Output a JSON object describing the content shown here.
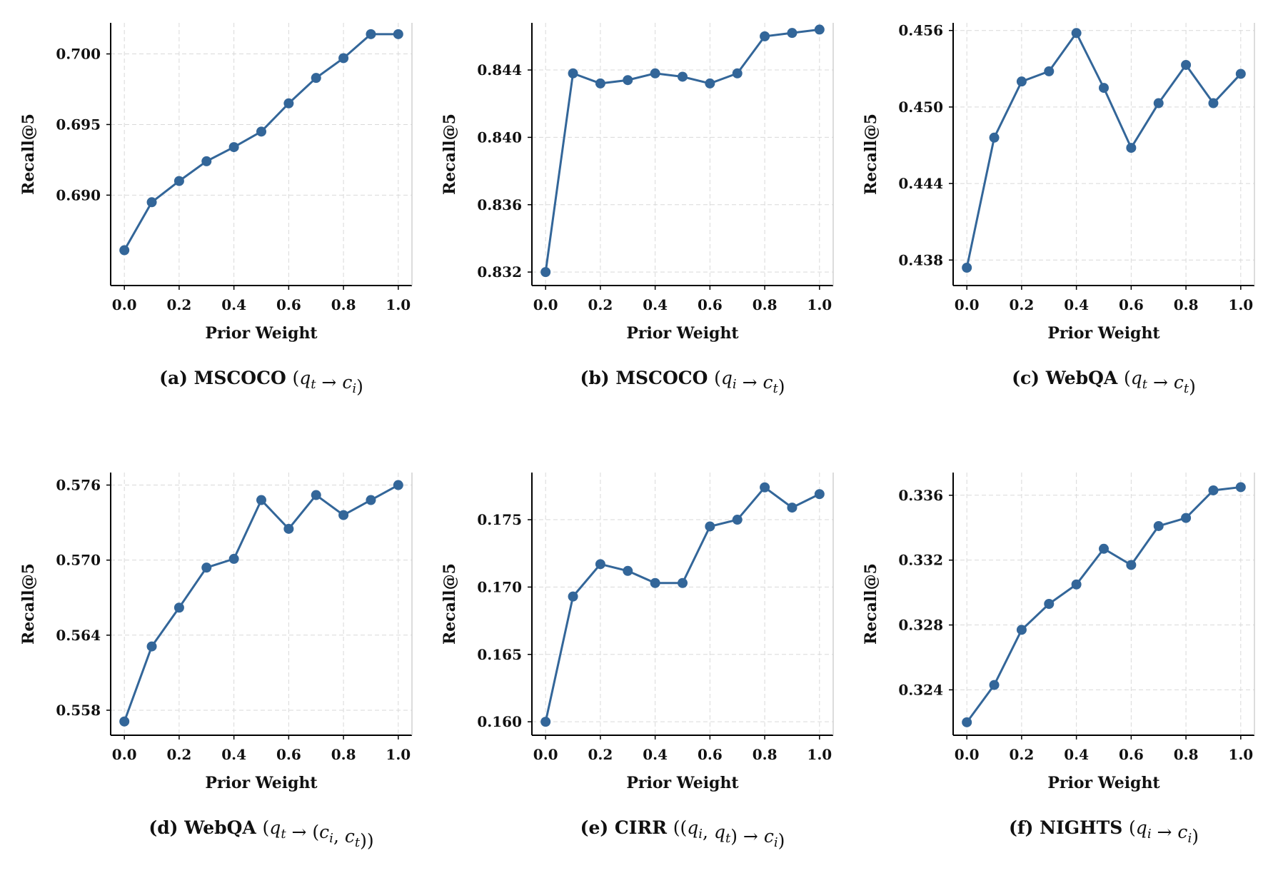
{
  "style": {
    "line_color": "#336699",
    "grid_color": "#d9d9d9"
  },
  "chart_data": [
    {
      "type": "line",
      "caption": {
        "prefix": "(a) MSCOCO ",
        "expr": "(q_t → c_i)"
      },
      "xlabel": "Prior Weight",
      "ylabel": "Recall@5",
      "x": [
        0.0,
        0.1,
        0.2,
        0.3,
        0.4,
        0.5,
        0.6,
        0.7,
        0.8,
        0.9,
        1.0
      ],
      "xticks": [
        "0.0",
        "0.2",
        "0.4",
        "0.6",
        "0.8",
        "1.0"
      ],
      "xlim": [
        -0.05,
        1.05
      ],
      "ylim": [
        0.6836,
        0.7022
      ],
      "yticks": [
        "0.690",
        "0.695",
        "0.700"
      ],
      "series": [
        {
          "values": [
            0.6861,
            0.6895,
            0.691,
            0.6924,
            0.6934,
            0.6945,
            0.6965,
            0.6983,
            0.6997,
            0.7014,
            0.7014
          ]
        }
      ],
      "grid": true
    },
    {
      "type": "line",
      "caption": {
        "prefix": "(b) MSCOCO ",
        "expr": "(q_i → c_t)"
      },
      "xlabel": "Prior Weight",
      "ylabel": "Recall@5",
      "x": [
        0.0,
        0.1,
        0.2,
        0.3,
        0.4,
        0.5,
        0.6,
        0.7,
        0.8,
        0.9,
        1.0
      ],
      "xticks": [
        "0.0",
        "0.2",
        "0.4",
        "0.6",
        "0.8",
        "1.0"
      ],
      "xlim": [
        -0.05,
        1.05
      ],
      "ylim": [
        0.8312,
        0.8468
      ],
      "yticks": [
        "0.832",
        "0.836",
        "0.840",
        "0.844"
      ],
      "series": [
        {
          "values": [
            0.832,
            0.8438,
            0.8432,
            0.8434,
            0.8438,
            0.8436,
            0.8432,
            0.8438,
            0.846,
            0.8462,
            0.8464
          ]
        }
      ],
      "grid": true
    },
    {
      "type": "line",
      "caption": {
        "prefix": "(c) WebQA ",
        "expr": "(q_t → c_t)"
      },
      "xlabel": "Prior Weight",
      "ylabel": "Recall@5",
      "x": [
        0.0,
        0.1,
        0.2,
        0.3,
        0.4,
        0.5,
        0.6,
        0.7,
        0.8,
        0.9,
        1.0
      ],
      "xticks": [
        "0.0",
        "0.2",
        "0.4",
        "0.6",
        "0.8",
        "1.0"
      ],
      "xlim": [
        -0.05,
        1.05
      ],
      "ylim": [
        0.436,
        0.4566
      ],
      "yticks": [
        "0.438",
        "0.444",
        "0.450",
        "0.456"
      ],
      "series": [
        {
          "values": [
            0.4374,
            0.4476,
            0.452,
            0.4528,
            0.4558,
            0.4515,
            0.4468,
            0.4503,
            0.4533,
            0.4503,
            0.4526
          ]
        }
      ],
      "grid": true
    },
    {
      "type": "line",
      "caption": {
        "prefix": "(d) WebQA ",
        "expr": "(q_t → (c_i, c_t))"
      },
      "xlabel": "Prior Weight",
      "ylabel": "Recall@5",
      "x": [
        0.0,
        0.1,
        0.2,
        0.3,
        0.4,
        0.5,
        0.6,
        0.7,
        0.8,
        0.9,
        1.0
      ],
      "xticks": [
        "0.0",
        "0.2",
        "0.4",
        "0.6",
        "0.8",
        "1.0"
      ],
      "xlim": [
        -0.05,
        1.05
      ],
      "ylim": [
        0.556,
        0.577
      ],
      "yticks": [
        "0.558",
        "0.564",
        "0.570",
        "0.576"
      ],
      "series": [
        {
          "values": [
            0.5571,
            0.5631,
            0.5662,
            0.5694,
            0.5701,
            0.5748,
            0.5725,
            0.5752,
            0.5736,
            0.5748,
            0.576
          ]
        }
      ],
      "grid": true
    },
    {
      "type": "line",
      "caption": {
        "prefix": "(e) CIRR ",
        "expr": "((q_i, q_t) → c_i)"
      },
      "xlabel": "Prior Weight",
      "ylabel": "Recall@5",
      "x": [
        0.0,
        0.1,
        0.2,
        0.3,
        0.4,
        0.5,
        0.6,
        0.7,
        0.8,
        0.9,
        1.0
      ],
      "xticks": [
        "0.0",
        "0.2",
        "0.4",
        "0.6",
        "0.8",
        "1.0"
      ],
      "xlim": [
        -0.05,
        1.05
      ],
      "ylim": [
        0.159,
        0.1785
      ],
      "yticks": [
        "0.160",
        "0.165",
        "0.170",
        "0.175"
      ],
      "series": [
        {
          "values": [
            0.16,
            0.1693,
            0.1717,
            0.1712,
            0.1703,
            0.1703,
            0.1745,
            0.175,
            0.1774,
            0.1759,
            0.1769
          ]
        }
      ],
      "grid": true
    },
    {
      "type": "line",
      "caption": {
        "prefix": "(f) NIGHTS ",
        "expr": "(q_i → c_i)"
      },
      "xlabel": "Prior Weight",
      "ylabel": "Recall@5",
      "x": [
        0.0,
        0.1,
        0.2,
        0.3,
        0.4,
        0.5,
        0.6,
        0.7,
        0.8,
        0.9,
        1.0
      ],
      "xticks": [
        "0.0",
        "0.2",
        "0.4",
        "0.6",
        "0.8",
        "1.0"
      ],
      "xlim": [
        -0.05,
        1.05
      ],
      "ylim": [
        0.3212,
        0.3374
      ],
      "yticks": [
        "0.324",
        "0.328",
        "0.332",
        "0.336"
      ],
      "series": [
        {
          "values": [
            0.322,
            0.3243,
            0.3277,
            0.3293,
            0.3305,
            0.3327,
            0.3317,
            0.3341,
            0.3346,
            0.3363,
            0.3365
          ]
        }
      ],
      "grid": true
    }
  ]
}
